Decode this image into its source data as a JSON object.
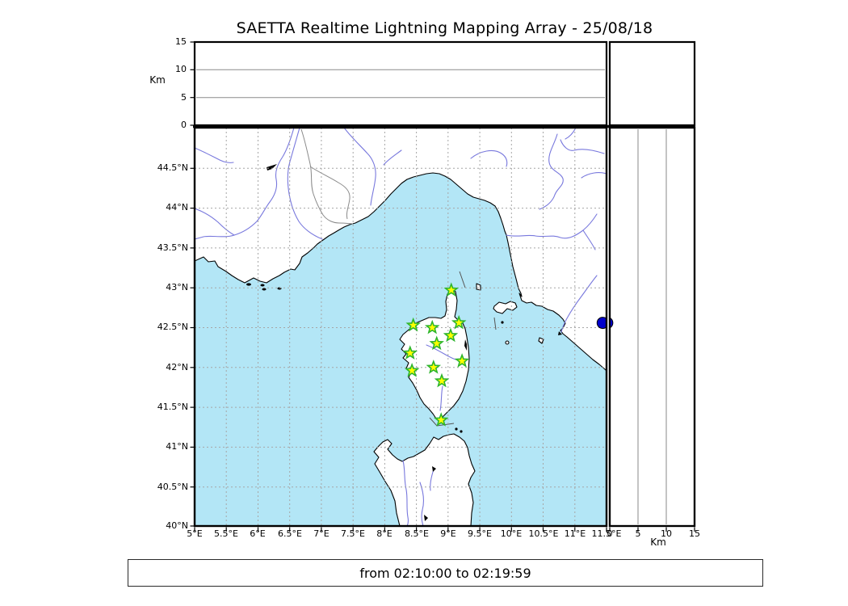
{
  "ui": {
    "title": "SAETTA Realtime Lightning Mapping Array - 25/08/18",
    "footer": "from 02:10:00 to 02:19:59"
  },
  "chart_data": {
    "type": "scatter",
    "title": "SAETTA Realtime Lightning Mapping Array - 25/08/18",
    "date": "25/08/18",
    "time_window": {
      "from": "02:10:00",
      "to": "02:19:59"
    },
    "projection": {
      "lon_range": [
        5,
        11.5
      ],
      "lat_range": [
        40,
        45
      ],
      "grid": "dashed 0.5 deg"
    },
    "x_axis": {
      "tick_labels": [
        "5°E",
        "5.5°E",
        "6°E",
        "6.5°E",
        "7°E",
        "7.5°E",
        "8°E",
        "8.5°E",
        "9°E",
        "9.5°E",
        "10°E",
        "10.5°E",
        "11°E",
        "11.5°E"
      ]
    },
    "y_axis": {
      "tick_labels": [
        "44.5°N",
        "44°N",
        "43.5°N",
        "43°N",
        "42.5°N",
        "42°N",
        "41.5°N",
        "41°N",
        "40.5°N",
        "40°N"
      ]
    },
    "altitude_axes": {
      "label": "Km",
      "range_km": [
        0,
        15
      ],
      "top_panel_tick_labels": [
        "15",
        "10",
        "5",
        "0"
      ],
      "right_panel_tick_labels": [
        "0",
        "5",
        "10",
        "15"
      ],
      "gridlines_km": [
        5,
        10
      ]
    },
    "stations": [
      {
        "lon": 9.05,
        "lat": 42.96
      },
      {
        "lon": 8.45,
        "lat": 42.52
      },
      {
        "lon": 8.75,
        "lat": 42.49
      },
      {
        "lon": 9.17,
        "lat": 42.55
      },
      {
        "lon": 9.04,
        "lat": 42.39
      },
      {
        "lon": 8.82,
        "lat": 42.29
      },
      {
        "lon": 8.4,
        "lat": 42.17
      },
      {
        "lon": 9.22,
        "lat": 42.07
      },
      {
        "lon": 8.43,
        "lat": 41.95
      },
      {
        "lon": 8.77,
        "lat": 41.99
      },
      {
        "lon": 8.9,
        "lat": 41.82
      },
      {
        "lon": 8.89,
        "lat": 41.33
      }
    ],
    "sources": [
      {
        "lon": 11.44,
        "lat": 42.55,
        "altitude_km": -0.45,
        "color": "#0000cc"
      }
    ],
    "colors": {
      "sea": "#b3e6f6",
      "land": "#ffffff",
      "coastline": "#000000",
      "river": "#7878dd",
      "admin_border": "#8a8a8a",
      "graticule": "#a6a6a6",
      "station_fill": "#ffff00",
      "station_edge": "#2db52d",
      "source_dot": "#0000cc"
    }
  }
}
